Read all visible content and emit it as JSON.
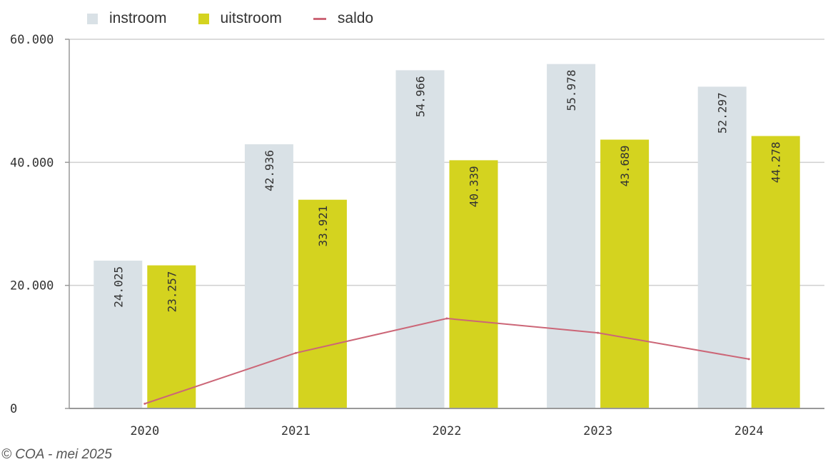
{
  "chart_data": {
    "type": "bar",
    "categories": [
      "2020",
      "2021",
      "2022",
      "2023",
      "2024"
    ],
    "series": [
      {
        "name": "instroom",
        "type": "bar",
        "color": "#d9e1e6",
        "values": [
          24025,
          42936,
          54966,
          55978,
          52297
        ],
        "labels": [
          "24.025",
          "42.936",
          "54.966",
          "55.978",
          "52.297"
        ]
      },
      {
        "name": "uitstroom",
        "type": "bar",
        "color": "#d4d31f",
        "values": [
          23257,
          33921,
          40339,
          43689,
          44278
        ],
        "labels": [
          "23.257",
          "33.921",
          "40.339",
          "43.689",
          "44.278"
        ]
      },
      {
        "name": "saldo",
        "type": "line",
        "color": "#cc6677",
        "values": [
          768,
          9015,
          14627,
          12289,
          8019
        ]
      }
    ],
    "ylim": [
      0,
      60000
    ],
    "yticks": [
      0,
      20000,
      40000,
      60000
    ],
    "ytick_labels": [
      "0",
      "20.000",
      "40.000",
      "60.000"
    ],
    "title": "",
    "xlabel": "",
    "ylabel": "",
    "grid": true,
    "legend_position": "top-left"
  },
  "credit": "© COA - mei 2025"
}
